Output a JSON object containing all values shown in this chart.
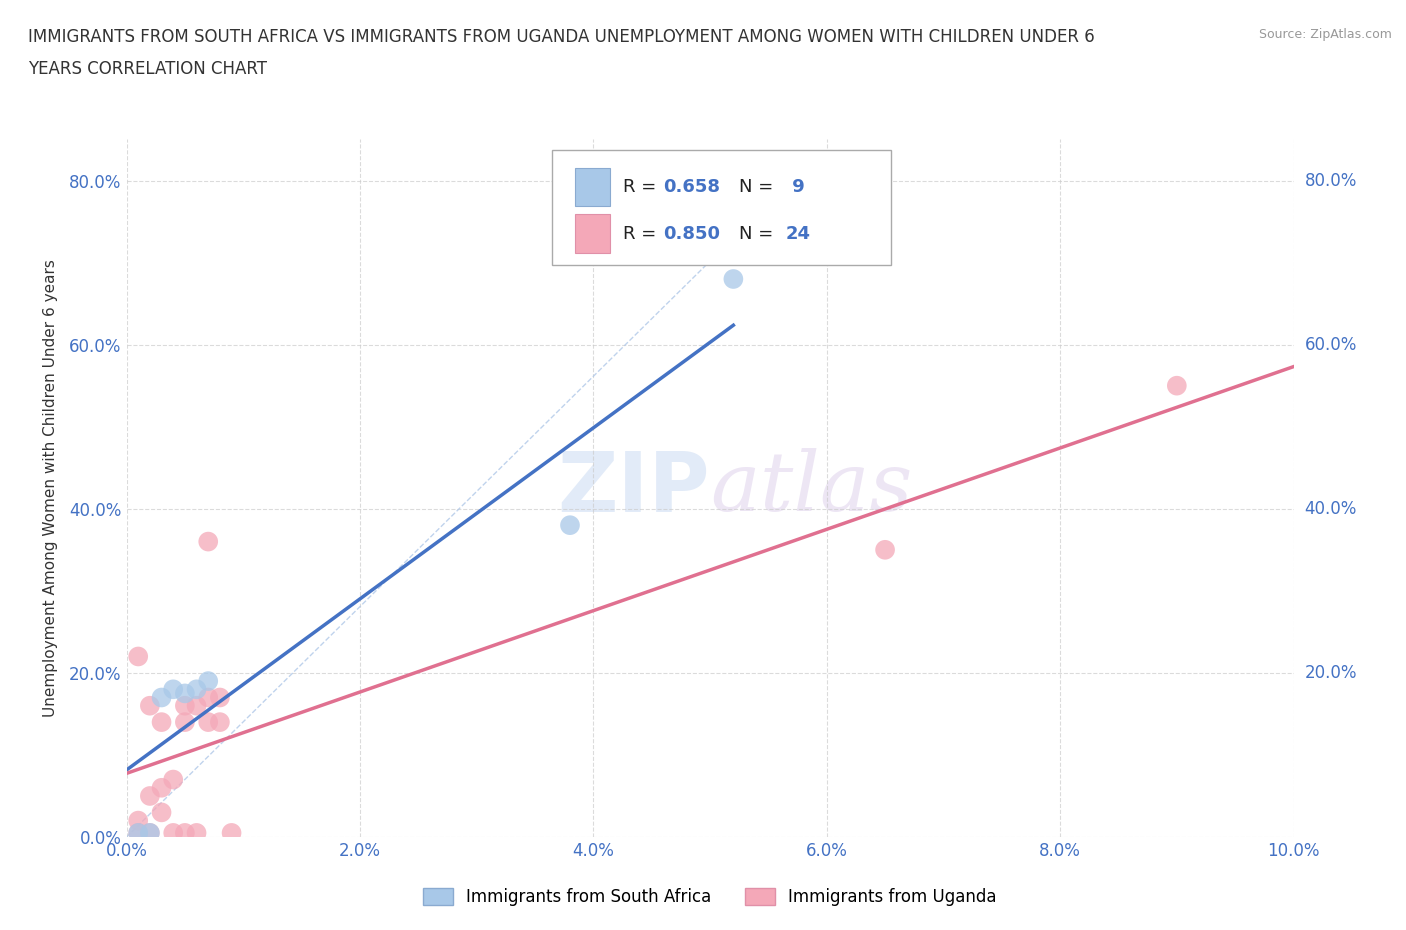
{
  "title_line1": "IMMIGRANTS FROM SOUTH AFRICA VS IMMIGRANTS FROM UGANDA UNEMPLOYMENT AMONG WOMEN WITH CHILDREN UNDER 6",
  "title_line2": "YEARS CORRELATION CHART",
  "source": "Source: ZipAtlas.com",
  "ylabel": "Unemployment Among Women with Children Under 6 years",
  "xlabel": "",
  "xlim": [
    0,
    0.1
  ],
  "ylim": [
    0,
    0.85
  ],
  "yticks": [
    0.0,
    0.2,
    0.4,
    0.6,
    0.8
  ],
  "yticklabels_left": [
    "0.0%",
    "20.0%",
    "40.0%",
    "60.0%",
    "80.0%"
  ],
  "yticklabels_right": [
    "80.0%",
    "60.0%",
    "40.0%",
    "20.0%"
  ],
  "xticks": [
    0.0,
    0.02,
    0.04,
    0.06,
    0.08,
    0.1
  ],
  "xticklabels": [
    "0.0%",
    "2.0%",
    "4.0%",
    "6.0%",
    "8.0%",
    "10.0%"
  ],
  "south_africa_x": [
    0.001,
    0.002,
    0.003,
    0.004,
    0.005,
    0.006,
    0.007,
    0.038,
    0.052
  ],
  "south_africa_y": [
    0.005,
    0.005,
    0.17,
    0.18,
    0.175,
    0.18,
    0.19,
    0.38,
    0.68
  ],
  "uganda_x": [
    0.001,
    0.001,
    0.001,
    0.002,
    0.002,
    0.002,
    0.003,
    0.003,
    0.003,
    0.004,
    0.004,
    0.005,
    0.005,
    0.005,
    0.006,
    0.006,
    0.007,
    0.007,
    0.007,
    0.008,
    0.008,
    0.009,
    0.065,
    0.09
  ],
  "uganda_y": [
    0.005,
    0.02,
    0.22,
    0.005,
    0.05,
    0.16,
    0.03,
    0.06,
    0.14,
    0.005,
    0.07,
    0.005,
    0.14,
    0.16,
    0.005,
    0.16,
    0.14,
    0.17,
    0.36,
    0.14,
    0.17,
    0.005,
    0.35,
    0.55
  ],
  "sa_color": "#a8c8e8",
  "ug_color": "#f4a8b8",
  "sa_line_color": "#4472c4",
  "ug_line_color": "#e07090",
  "sa_R": 0.658,
  "sa_N": 9,
  "ug_R": 0.85,
  "ug_N": 24,
  "watermark_zip": "ZIP",
  "watermark_atlas": "atlas",
  "legend_label_sa": "Immigrants from South Africa",
  "legend_label_ug": "Immigrants from Uganda",
  "background_color": "#ffffff",
  "grid_color": "#cccccc"
}
